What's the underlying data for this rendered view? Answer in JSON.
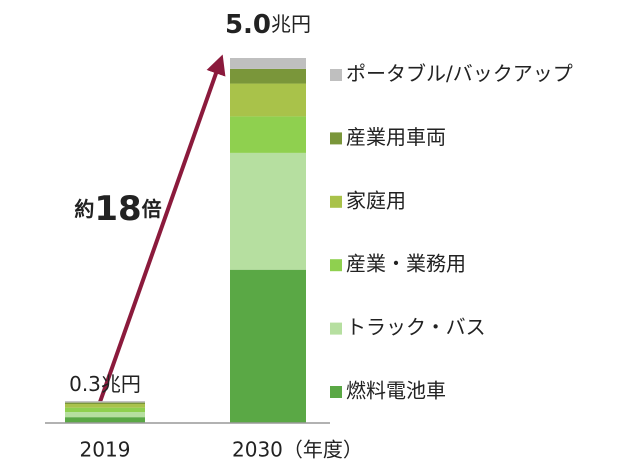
{
  "chart_data": {
    "type": "stacked_bar",
    "categories": [
      "2019",
      "2030（年度）"
    ],
    "series": [
      {
        "name": "燃料電池車",
        "color": "#5aa845",
        "values": [
          0.08,
          2.1
        ]
      },
      {
        "name": "トラック・バス",
        "color": "#b6dfa0",
        "values": [
          0.07,
          1.6
        ]
      },
      {
        "name": "産業・業務用",
        "color": "#8fd04f",
        "values": [
          0.06,
          0.5
        ]
      },
      {
        "name": "家庭用",
        "color": "#a9c24a",
        "values": [
          0.05,
          0.45
        ]
      },
      {
        "name": "産業用車両",
        "color": "#7a963a",
        "values": [
          0.02,
          0.2
        ]
      },
      {
        "name": "ポータブル/バックアップ",
        "color": "#bfbfbf",
        "values": [
          0.02,
          0.15
        ]
      }
    ],
    "totals": [
      0.3,
      5.0
    ],
    "total_labels": [
      "0.3",
      "5.0"
    ],
    "unit": "兆円",
    "annotation": [
      "約",
      "18",
      "倍"
    ],
    "ylim": [
      0,
      5.0
    ]
  }
}
